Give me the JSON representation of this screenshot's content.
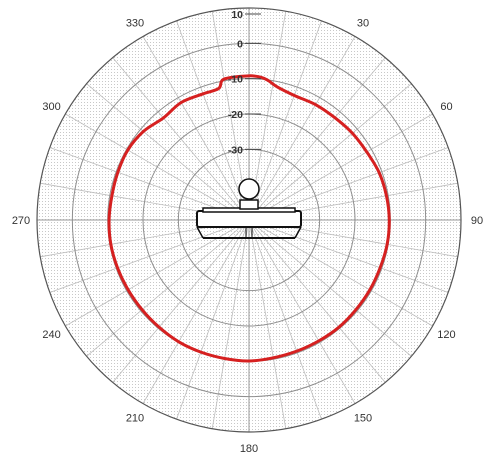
{
  "chart_data": {
    "type": "polar-line",
    "title": "",
    "radial_ticks": [
      {
        "value": 10,
        "label": "10"
      },
      {
        "value": 0,
        "label": "0"
      },
      {
        "value": -10,
        "label": "-10"
      },
      {
        "value": -20,
        "label": "-20"
      },
      {
        "value": -30,
        "label": "-30"
      }
    ],
    "radial_range": [
      -50,
      10
    ],
    "angle_labels": [
      {
        "angle": 30,
        "label": "30"
      },
      {
        "angle": 60,
        "label": "60"
      },
      {
        "angle": 90,
        "label": "90"
      },
      {
        "angle": 120,
        "label": "120"
      },
      {
        "angle": 150,
        "label": "150"
      },
      {
        "angle": 180,
        "label": "180"
      },
      {
        "angle": 210,
        "label": "210"
      },
      {
        "angle": 240,
        "label": "240"
      },
      {
        "angle": 270,
        "label": "270"
      },
      {
        "angle": 300,
        "label": "300"
      },
      {
        "angle": 330,
        "label": "330"
      }
    ],
    "angular_grid_step": 10,
    "grid": true,
    "series": [
      {
        "color": "#d62020",
        "points": [
          [
            -10,
            -9.5
          ],
          [
            0,
            -9.2
          ],
          [
            5,
            -9.5
          ],
          [
            8,
            -10.2
          ],
          [
            12,
            -11.5
          ],
          [
            20,
            -12.5
          ],
          [
            30,
            -12.3
          ],
          [
            40,
            -12.2
          ],
          [
            50,
            -11.8
          ],
          [
            60,
            -11.5
          ],
          [
            70,
            -10.8
          ],
          [
            80,
            -10.5
          ],
          [
            90,
            -10.3
          ],
          [
            100,
            -10.3
          ],
          [
            110,
            -10.5
          ],
          [
            120,
            -10.5
          ],
          [
            130,
            -10.5
          ],
          [
            140,
            -10.4
          ],
          [
            150,
            -10.5
          ],
          [
            160,
            -10.5
          ],
          [
            170,
            -10.4
          ],
          [
            180,
            -10.1
          ],
          [
            190,
            -10.2
          ],
          [
            200,
            -10.2
          ],
          [
            210,
            -10.2
          ],
          [
            220,
            -10.4
          ],
          [
            230,
            -10.5
          ],
          [
            240,
            -10.5
          ],
          [
            250,
            -10.4
          ],
          [
            260,
            -10.3
          ],
          [
            270,
            -10.4
          ],
          [
            280,
            -10.6
          ],
          [
            290,
            -10.5
          ],
          [
            300,
            -10.4
          ],
          [
            310,
            -11.0
          ],
          [
            320,
            -12.3
          ],
          [
            330,
            -11.6
          ],
          [
            340,
            -12.0
          ],
          [
            347,
            -11.8
          ]
        ]
      }
    ]
  }
}
